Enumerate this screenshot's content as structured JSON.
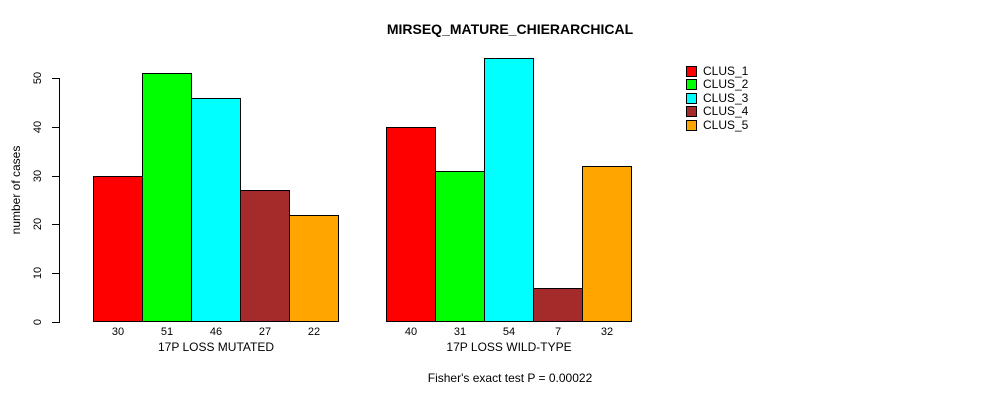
{
  "chart_data": {
    "type": "bar",
    "title": "MIRSEQ_MATURE_CHIERARCHICAL",
    "ylabel": "number of cases",
    "xlabel": "",
    "categories": [
      "17P LOSS MUTATED",
      "17P LOSS WILD-TYPE"
    ],
    "series": [
      {
        "name": "CLUS_1",
        "color": "#FF0000",
        "values": [
          30,
          40
        ]
      },
      {
        "name": "CLUS_2",
        "color": "#00FF00",
        "values": [
          51,
          31
        ]
      },
      {
        "name": "CLUS_3",
        "color": "#00FFFF",
        "values": [
          46,
          54
        ]
      },
      {
        "name": "CLUS_4",
        "color": "#A52A2A",
        "values": [
          27,
          7
        ]
      },
      {
        "name": "CLUS_5",
        "color": "#FFA500",
        "values": [
          22,
          32
        ]
      }
    ],
    "yticks": [
      0,
      10,
      20,
      30,
      40,
      50
    ],
    "ylim": [
      0,
      55
    ],
    "bar_value_labels": true,
    "grid": false,
    "legend_position": "right",
    "annotation": "Fisher's exact test P = 0.00022"
  }
}
